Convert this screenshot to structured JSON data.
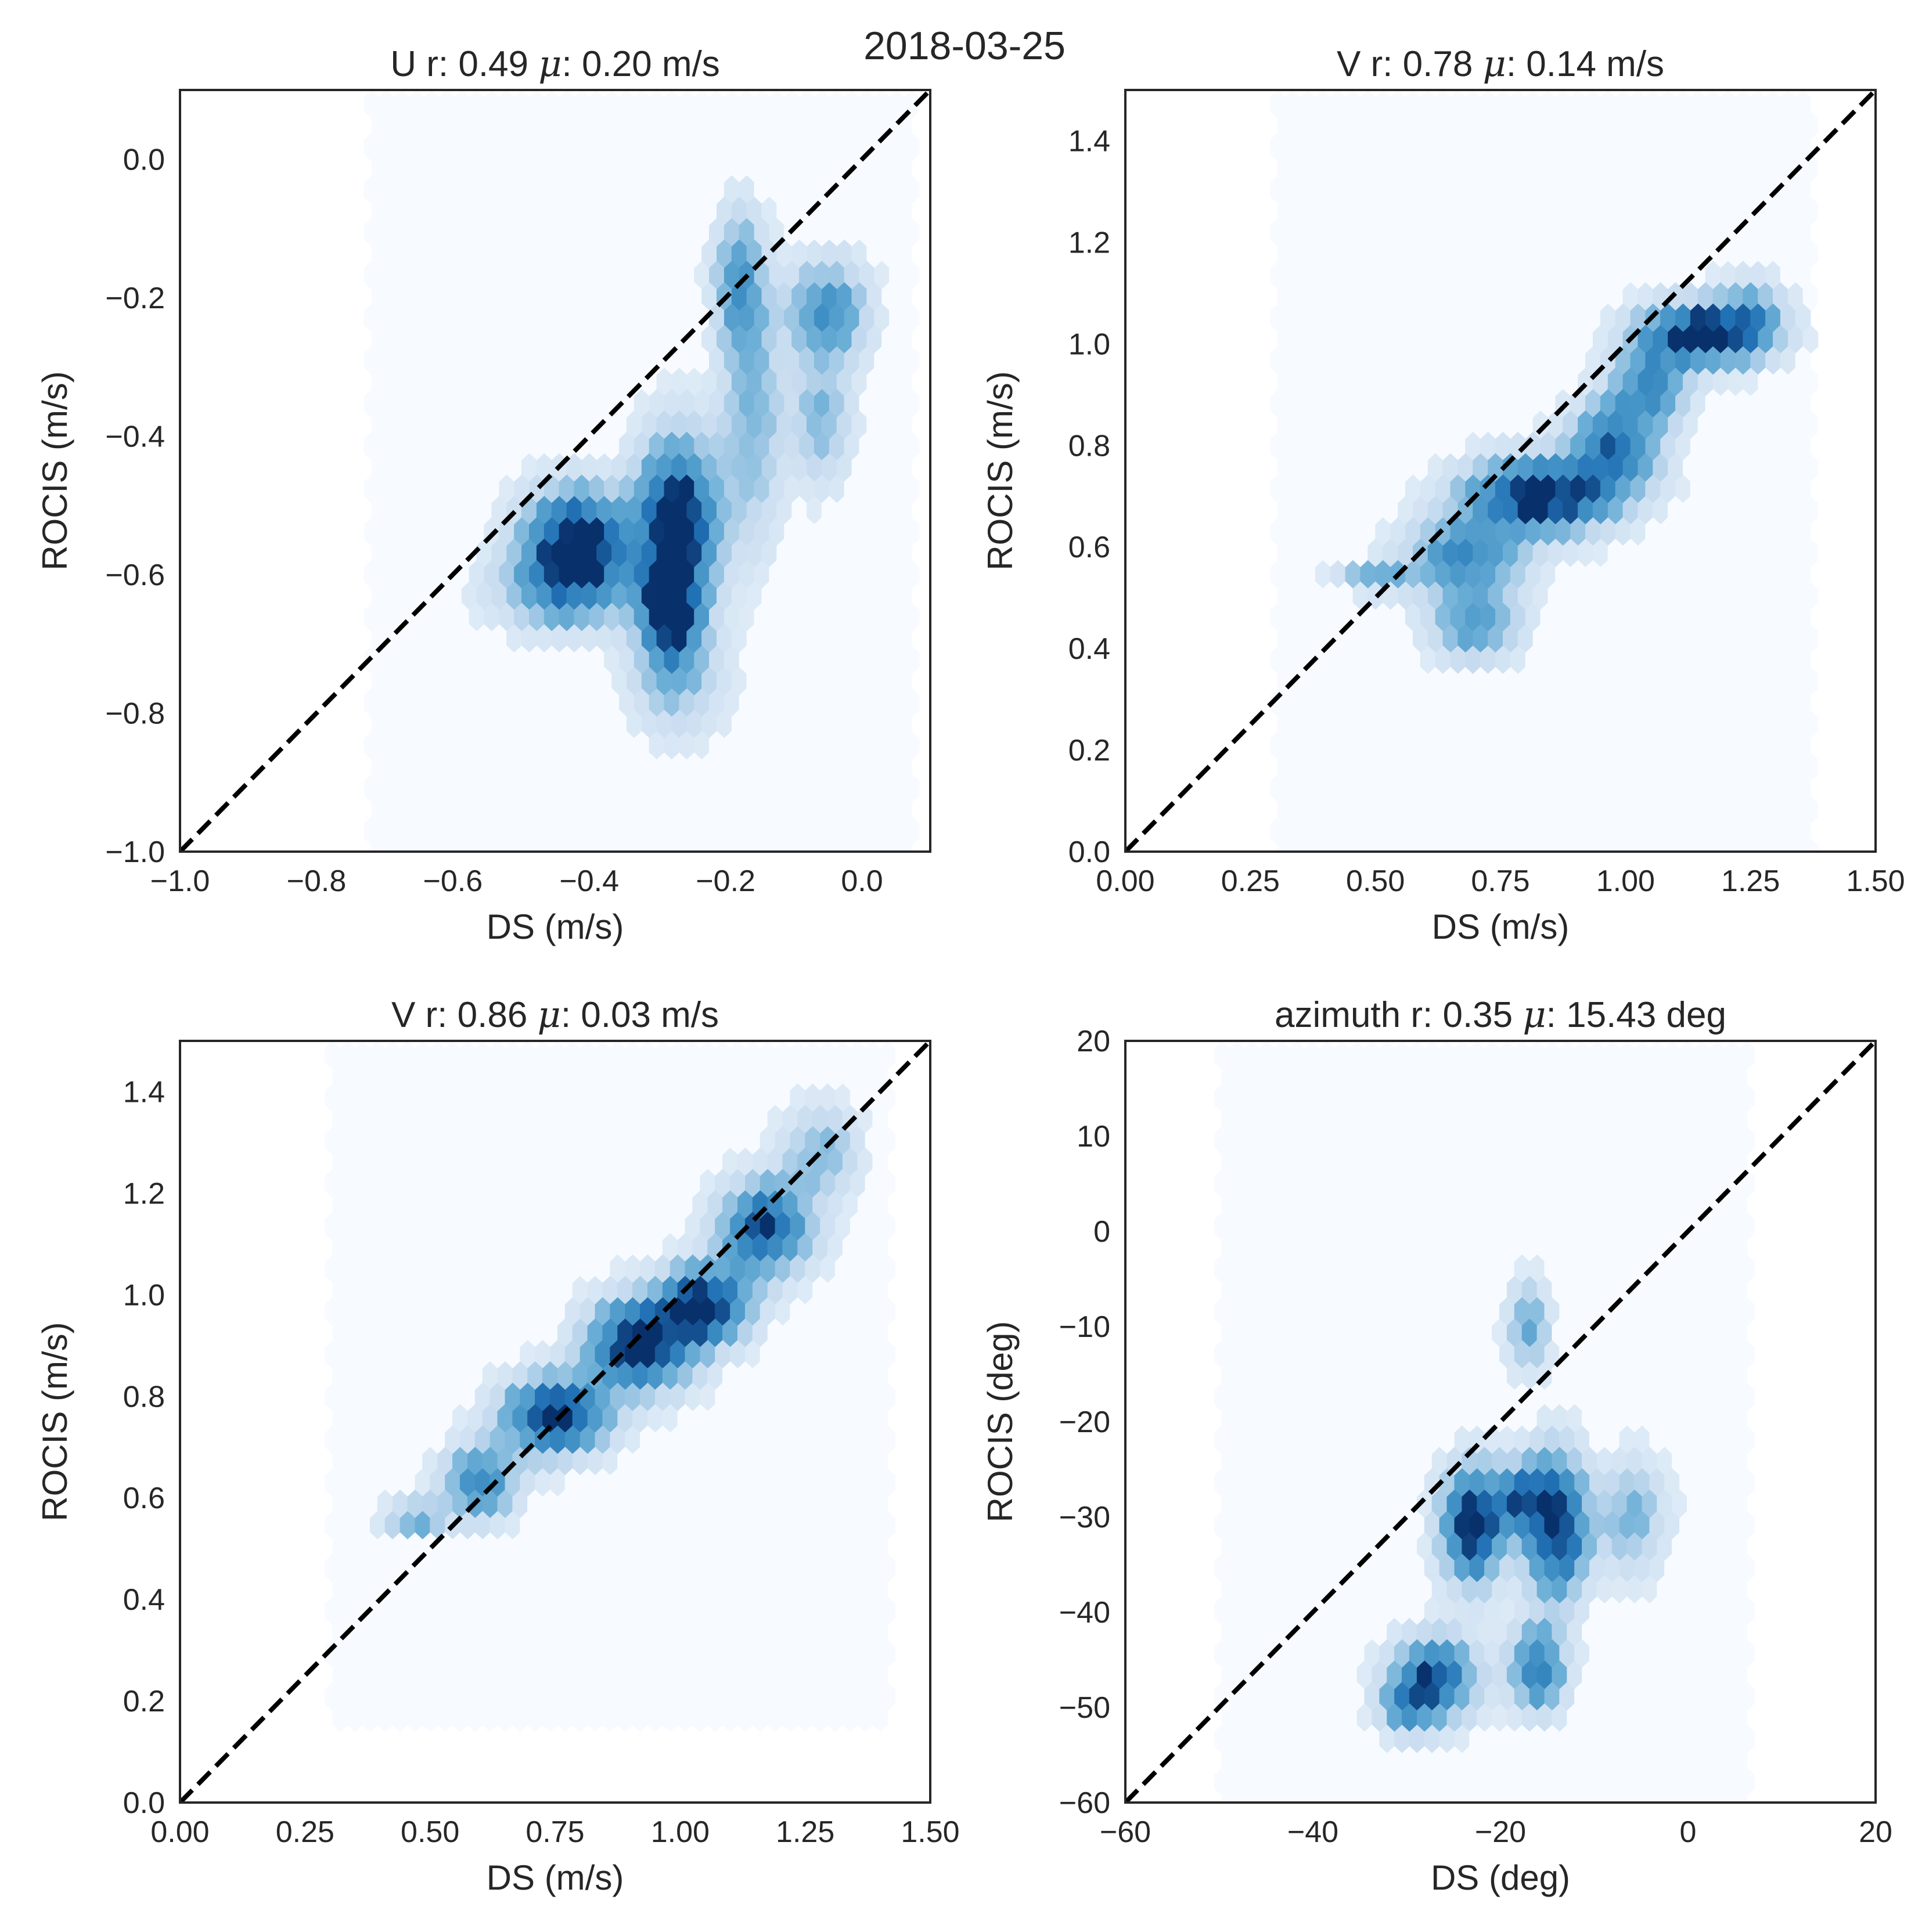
{
  "figure_title": "2018-03-25",
  "colors": {
    "background": "#ffffff",
    "hex_base": "#f7fbff",
    "hex_light": "#c6dbef",
    "hex_mid": "#6baed6",
    "hex_dark": "#2171b5",
    "hex_darkest": "#08306b",
    "identity_line": "#000000",
    "axes": "#262626"
  },
  "chart_data": [
    {
      "type": "hexbin",
      "title": "U r: 0.49 μ: 0.20 m/s",
      "title_parts": {
        "prefix": "U r: 0.49 ",
        "mu": "μ",
        "suffix": ": 0.20 m/s"
      },
      "xlabel": "DS (m/s)",
      "ylabel": "ROCIS (m/s)",
      "xlim": [
        -1.0,
        0.1
      ],
      "ylim": [
        -1.0,
        0.1
      ],
      "xticks": [
        -1.0,
        -0.8,
        -0.6,
        -0.4,
        -0.2,
        0.0
      ],
      "xtick_labels": [
        "−1.0",
        "−0.8",
        "−0.6",
        "−0.4",
        "−0.2",
        "0.0"
      ],
      "yticks": [
        -1.0,
        -0.8,
        -0.6,
        -0.4,
        -0.2,
        0.0
      ],
      "ytick_labels": [
        "−1.0",
        "−0.8",
        "−0.6",
        "−0.4",
        "−0.2",
        "0.0"
      ],
      "identity_line": true,
      "hex_extent": {
        "x": [
          -0.73,
          0.08
        ],
        "y": [
          -1.0,
          0.1
        ]
      },
      "density_clusters": [
        {
          "x": -0.42,
          "y": -0.55,
          "sx": 0.05,
          "sy": 0.05,
          "w": 1.0
        },
        {
          "x": -0.27,
          "y": -0.52,
          "sx": 0.04,
          "sy": 0.08,
          "w": 1.0
        },
        {
          "x": -0.28,
          "y": -0.65,
          "sx": 0.03,
          "sy": 0.06,
          "w": 0.8
        },
        {
          "x": -0.43,
          "y": -0.62,
          "sx": 0.07,
          "sy": 0.04,
          "w": 0.5
        },
        {
          "x": -0.18,
          "y": -0.18,
          "sx": 0.025,
          "sy": 0.07,
          "w": 0.5
        },
        {
          "x": -0.05,
          "y": -0.22,
          "sx": 0.04,
          "sy": 0.05,
          "w": 0.55
        },
        {
          "x": -0.06,
          "y": -0.38,
          "sx": 0.03,
          "sy": 0.06,
          "w": 0.35
        },
        {
          "x": -0.16,
          "y": -0.38,
          "sx": 0.03,
          "sy": 0.12,
          "w": 0.35
        },
        {
          "x": -0.27,
          "y": -0.75,
          "sx": 0.05,
          "sy": 0.06,
          "w": 0.25
        }
      ]
    },
    {
      "type": "hexbin",
      "title": "V r: 0.78 μ: 0.14 m/s",
      "title_parts": {
        "prefix": "V r: 0.78 ",
        "mu": "μ",
        "suffix": ": 0.14 m/s"
      },
      "xlabel": "DS (m/s)",
      "ylabel": "ROCIS (m/s)",
      "xlim": [
        0.0,
        1.5
      ],
      "ylim": [
        0.0,
        1.5
      ],
      "xticks": [
        0.0,
        0.25,
        0.5,
        0.75,
        1.0,
        1.25,
        1.5
      ],
      "xtick_labels": [
        "0.00",
        "0.25",
        "0.50",
        "0.75",
        "1.00",
        "1.25",
        "1.50"
      ],
      "yticks": [
        0.0,
        0.2,
        0.4,
        0.6,
        0.8,
        1.0,
        1.2,
        1.4
      ],
      "ytick_labels": [
        "0.0",
        "0.2",
        "0.4",
        "0.6",
        "0.8",
        "1.0",
        "1.2",
        "1.4"
      ],
      "identity_line": true,
      "hex_extent": {
        "x": [
          0.29,
          1.38
        ],
        "y": [
          0.0,
          1.5
        ]
      },
      "density_clusters": [
        {
          "x": 0.83,
          "y": 0.7,
          "sx": 0.1,
          "sy": 0.05,
          "w": 1.0
        },
        {
          "x": 0.98,
          "y": 0.8,
          "sx": 0.06,
          "sy": 0.06,
          "w": 0.7
        },
        {
          "x": 1.15,
          "y": 1.02,
          "sx": 0.08,
          "sy": 0.04,
          "w": 1.0
        },
        {
          "x": 1.05,
          "y": 0.92,
          "sx": 0.05,
          "sy": 0.05,
          "w": 0.6
        },
        {
          "x": 0.68,
          "y": 0.58,
          "sx": 0.08,
          "sy": 0.05,
          "w": 0.6
        },
        {
          "x": 0.7,
          "y": 0.45,
          "sx": 0.06,
          "sy": 0.05,
          "w": 0.5
        },
        {
          "x": 0.5,
          "y": 0.54,
          "sx": 0.05,
          "sy": 0.02,
          "w": 0.4
        },
        {
          "x": 1.25,
          "y": 1.05,
          "sx": 0.05,
          "sy": 0.05,
          "w": 0.4
        }
      ]
    },
    {
      "type": "hexbin",
      "title": "V r: 0.86 μ: 0.03 m/s",
      "title_parts": {
        "prefix": "V r: 0.86 ",
        "mu": "μ",
        "suffix": ": 0.03 m/s"
      },
      "xlabel": "DS (m/s)",
      "ylabel": "ROCIS (m/s)",
      "xlim": [
        0.0,
        1.5
      ],
      "ylim": [
        0.0,
        1.5
      ],
      "xticks": [
        0.0,
        0.25,
        0.5,
        0.75,
        1.0,
        1.25,
        1.5
      ],
      "xtick_labels": [
        "0.00",
        "0.25",
        "0.50",
        "0.75",
        "1.00",
        "1.25",
        "1.50"
      ],
      "yticks": [
        0.0,
        0.2,
        0.4,
        0.6,
        0.8,
        1.0,
        1.2,
        1.4
      ],
      "ytick_labels": [
        "0.0",
        "0.2",
        "0.4",
        "0.6",
        "0.8",
        "1.0",
        "1.2",
        "1.4"
      ],
      "identity_line": true,
      "hex_extent": {
        "x": [
          0.29,
          1.42
        ],
        "y": [
          0.16,
          1.5
        ]
      },
      "density_clusters": [
        {
          "x": 0.75,
          "y": 0.76,
          "sx": 0.07,
          "sy": 0.05,
          "w": 1.0
        },
        {
          "x": 0.92,
          "y": 0.9,
          "sx": 0.07,
          "sy": 0.06,
          "w": 1.0
        },
        {
          "x": 1.05,
          "y": 0.98,
          "sx": 0.06,
          "sy": 0.05,
          "w": 1.0
        },
        {
          "x": 1.17,
          "y": 1.13,
          "sx": 0.06,
          "sy": 0.06,
          "w": 0.9
        },
        {
          "x": 0.6,
          "y": 0.63,
          "sx": 0.05,
          "sy": 0.05,
          "w": 0.6
        },
        {
          "x": 0.47,
          "y": 0.56,
          "sx": 0.04,
          "sy": 0.02,
          "w": 0.5
        },
        {
          "x": 1.28,
          "y": 1.28,
          "sx": 0.05,
          "sy": 0.06,
          "w": 0.35
        }
      ]
    },
    {
      "type": "hexbin",
      "title": "azimuth r: 0.35 μ: 15.43 deg",
      "title_parts": {
        "prefix": "azimuth r: 0.35 ",
        "mu": "μ",
        "suffix": ": 15.43 deg"
      },
      "xlabel": "DS (deg)",
      "ylabel": "ROCIS (deg)",
      "xlim": [
        -60,
        20
      ],
      "ylim": [
        -60,
        20
      ],
      "xticks": [
        -60,
        -40,
        -20,
        0,
        20
      ],
      "xtick_labels": [
        "−60",
        "−40",
        "−20",
        "0",
        "20"
      ],
      "yticks": [
        -60,
        -50,
        -40,
        -30,
        -20,
        -10,
        0,
        10,
        20
      ],
      "ytick_labels": [
        "−60",
        "−50",
        "−40",
        "−30",
        "−20",
        "−10",
        "0",
        "10",
        "20"
      ],
      "identity_line": true,
      "hex_extent": {
        "x": [
          -50.5,
          7
        ],
        "y": [
          -60,
          20
        ]
      },
      "density_clusters": [
        {
          "x": -23,
          "y": -31,
          "sx": 2.2,
          "sy": 4.0,
          "w": 1.0
        },
        {
          "x": -14,
          "y": -31,
          "sx": 2.2,
          "sy": 5.0,
          "w": 1.0
        },
        {
          "x": -18,
          "y": -28,
          "sx": 2.0,
          "sy": 2.5,
          "w": 0.6
        },
        {
          "x": -27,
          "y": -47,
          "sx": 3.0,
          "sy": 3.0,
          "w": 0.8
        },
        {
          "x": -16,
          "y": -46,
          "sx": 2.0,
          "sy": 3.0,
          "w": 0.7
        },
        {
          "x": -17,
          "y": -10,
          "sx": 1.5,
          "sy": 3.0,
          "w": 0.45
        },
        {
          "x": -6,
          "y": -30,
          "sx": 2.5,
          "sy": 4.0,
          "w": 0.35
        },
        {
          "x": -30,
          "y": -50,
          "sx": 2.0,
          "sy": 2.0,
          "w": 0.4
        }
      ]
    }
  ]
}
